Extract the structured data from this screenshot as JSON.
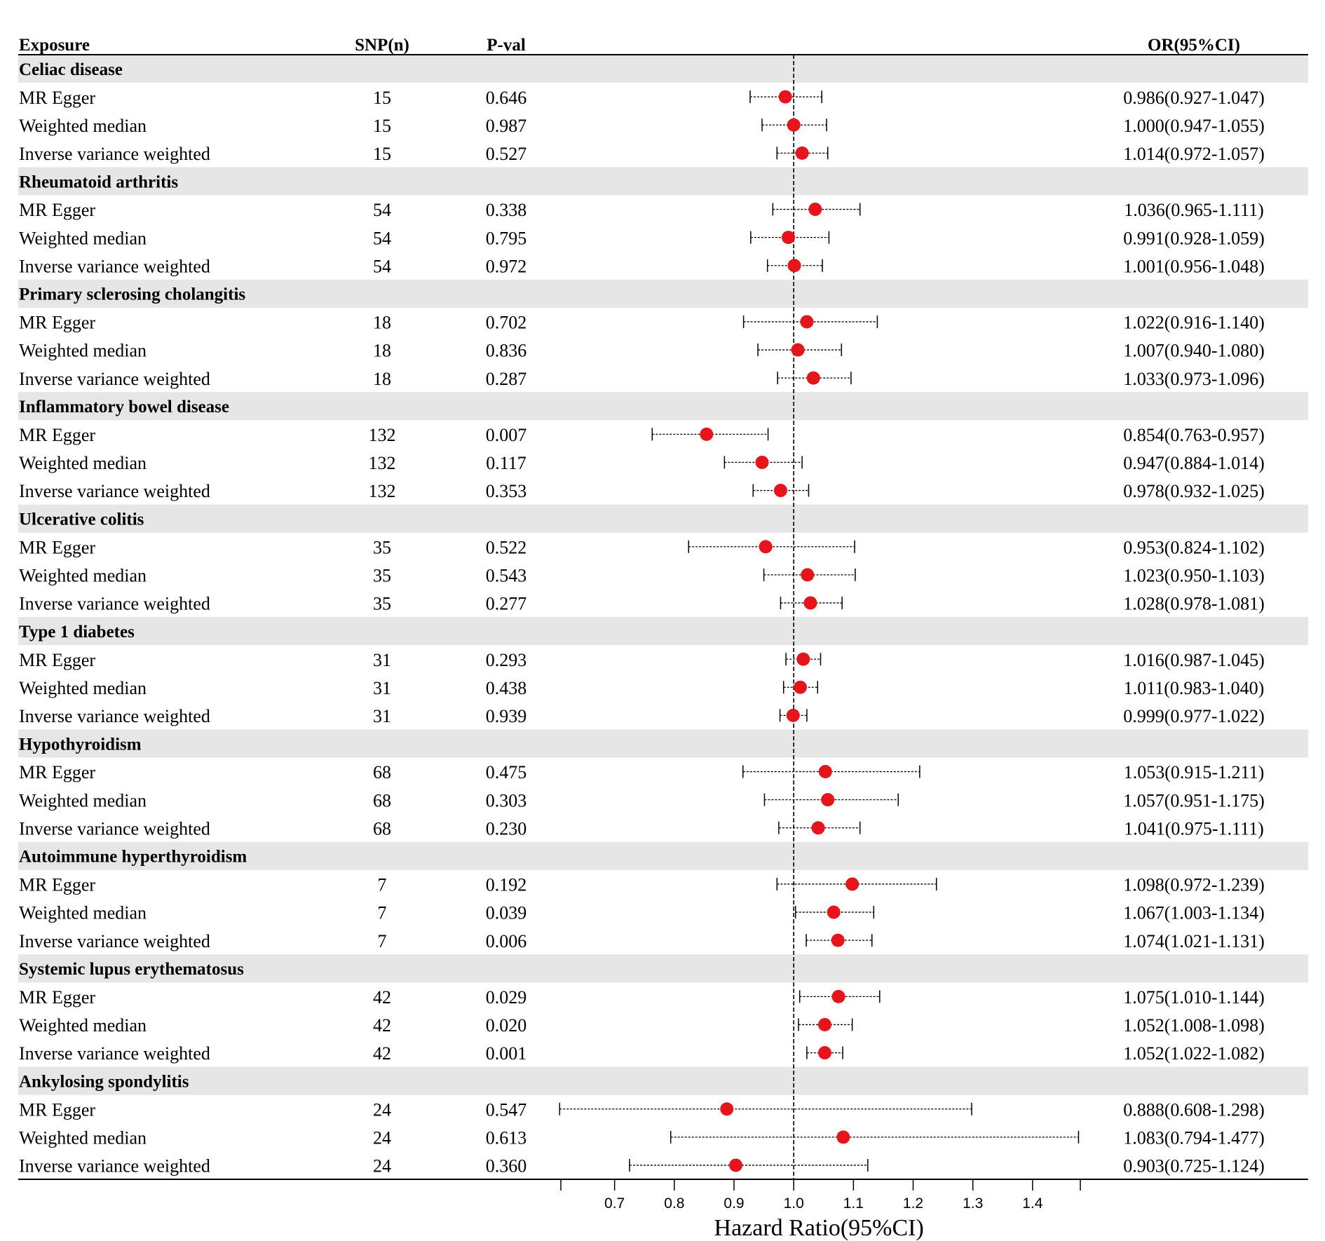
{
  "chart_data": {
    "type": "forest",
    "columns": {
      "exposure": "Exposure",
      "snp": "SNP(n)",
      "pval": "P-val",
      "or": "OR(95%CI)"
    },
    "xlabel": "Hazard Ratio(95%CI)",
    "xlim": [
      0.61,
      1.48
    ],
    "reference": 1.0,
    "xticks": [
      0.7,
      0.8,
      0.9,
      1.0,
      1.1,
      1.2,
      1.3,
      1.4
    ],
    "xtick_labels": [
      "0.7",
      "0.8",
      "0.9",
      "1.0",
      "1.1",
      "1.2",
      "1.3",
      "1.4"
    ],
    "point_color": "#e8141c",
    "band_color": "#e6e6e6",
    "groups": [
      {
        "name": "Celiac disease",
        "rows": [
          {
            "method": "MR Egger",
            "snp": "15",
            "pval": "0.646",
            "or": 0.986,
            "lo": 0.927,
            "hi": 1.047,
            "label": "0.986(0.927-1.047)"
          },
          {
            "method": "Weighted median",
            "snp": "15",
            "pval": "0.987",
            "or": 1.0,
            "lo": 0.947,
            "hi": 1.055,
            "label": "1.000(0.947-1.055)"
          },
          {
            "method": "Inverse variance weighted",
            "snp": "15",
            "pval": "0.527",
            "or": 1.014,
            "lo": 0.972,
            "hi": 1.057,
            "label": "1.014(0.972-1.057)"
          }
        ]
      },
      {
        "name": "Rheumatoid arthritis",
        "rows": [
          {
            "method": "MR Egger",
            "snp": "54",
            "pval": "0.338",
            "or": 1.036,
            "lo": 0.965,
            "hi": 1.111,
            "label": "1.036(0.965-1.111)"
          },
          {
            "method": "Weighted median",
            "snp": "54",
            "pval": "0.795",
            "or": 0.991,
            "lo": 0.928,
            "hi": 1.059,
            "label": "0.991(0.928-1.059)"
          },
          {
            "method": "Inverse variance weighted",
            "snp": "54",
            "pval": "0.972",
            "or": 1.001,
            "lo": 0.956,
            "hi": 1.048,
            "label": "1.001(0.956-1.048)"
          }
        ]
      },
      {
        "name": "Primary sclerosing cholangitis",
        "rows": [
          {
            "method": "MR Egger",
            "snp": "18",
            "pval": "0.702",
            "or": 1.022,
            "lo": 0.916,
            "hi": 1.14,
            "label": "1.022(0.916-1.140)"
          },
          {
            "method": "Weighted median",
            "snp": "18",
            "pval": "0.836",
            "or": 1.007,
            "lo": 0.94,
            "hi": 1.08,
            "label": "1.007(0.940-1.080)"
          },
          {
            "method": "Inverse variance weighted",
            "snp": "18",
            "pval": "0.287",
            "or": 1.033,
            "lo": 0.973,
            "hi": 1.096,
            "label": "1.033(0.973-1.096)"
          }
        ]
      },
      {
        "name": "Inflammatory bowel disease",
        "rows": [
          {
            "method": "MR Egger",
            "snp": "132",
            "pval": "0.007",
            "or": 0.854,
            "lo": 0.763,
            "hi": 0.957,
            "label": "0.854(0.763-0.957)"
          },
          {
            "method": "Weighted median",
            "snp": "132",
            "pval": "0.117",
            "or": 0.947,
            "lo": 0.884,
            "hi": 1.014,
            "label": "0.947(0.884-1.014)"
          },
          {
            "method": "Inverse variance weighted",
            "snp": "132",
            "pval": "0.353",
            "or": 0.978,
            "lo": 0.932,
            "hi": 1.025,
            "label": "0.978(0.932-1.025)"
          }
        ]
      },
      {
        "name": "Ulcerative colitis",
        "rows": [
          {
            "method": "MR Egger",
            "snp": "35",
            "pval": "0.522",
            "or": 0.953,
            "lo": 0.824,
            "hi": 1.102,
            "label": "0.953(0.824-1.102)"
          },
          {
            "method": "Weighted median",
            "snp": "35",
            "pval": "0.543",
            "or": 1.023,
            "lo": 0.95,
            "hi": 1.103,
            "label": "1.023(0.950-1.103)"
          },
          {
            "method": "Inverse variance weighted",
            "snp": "35",
            "pval": "0.277",
            "or": 1.028,
            "lo": 0.978,
            "hi": 1.081,
            "label": "1.028(0.978-1.081)"
          }
        ]
      },
      {
        "name": "Type 1 diabetes",
        "rows": [
          {
            "method": "MR Egger",
            "snp": "31",
            "pval": "0.293",
            "or": 1.016,
            "lo": 0.987,
            "hi": 1.045,
            "label": "1.016(0.987-1.045)"
          },
          {
            "method": "Weighted median",
            "snp": "31",
            "pval": "0.438",
            "or": 1.011,
            "lo": 0.983,
            "hi": 1.04,
            "label": "1.011(0.983-1.040)"
          },
          {
            "method": "Inverse variance weighted",
            "snp": "31",
            "pval": "0.939",
            "or": 0.999,
            "lo": 0.977,
            "hi": 1.022,
            "label": "0.999(0.977-1.022)"
          }
        ]
      },
      {
        "name": "Hypothyroidism",
        "rows": [
          {
            "method": "MR Egger",
            "snp": "68",
            "pval": "0.475",
            "or": 1.053,
            "lo": 0.915,
            "hi": 1.211,
            "label": "1.053(0.915-1.211)"
          },
          {
            "method": "Weighted median",
            "snp": "68",
            "pval": "0.303",
            "or": 1.057,
            "lo": 0.951,
            "hi": 1.175,
            "label": "1.057(0.951-1.175)"
          },
          {
            "method": "Inverse variance weighted",
            "snp": "68",
            "pval": "0.230",
            "or": 1.041,
            "lo": 0.975,
            "hi": 1.111,
            "label": "1.041(0.975-1.111)"
          }
        ]
      },
      {
        "name": "Autoimmune hyperthyroidism",
        "rows": [
          {
            "method": "MR Egger",
            "snp": "7",
            "pval": "0.192",
            "or": 1.098,
            "lo": 0.972,
            "hi": 1.239,
            "label": "1.098(0.972-1.239)"
          },
          {
            "method": "Weighted median",
            "snp": "7",
            "pval": "0.039",
            "or": 1.067,
            "lo": 1.003,
            "hi": 1.134,
            "label": "1.067(1.003-1.134)"
          },
          {
            "method": "Inverse variance weighted",
            "snp": "7",
            "pval": "0.006",
            "or": 1.074,
            "lo": 1.021,
            "hi": 1.131,
            "label": "1.074(1.021-1.131)"
          }
        ]
      },
      {
        "name": "Systemic lupus erythematosus",
        "rows": [
          {
            "method": "MR Egger",
            "snp": "42",
            "pval": "0.029",
            "or": 1.075,
            "lo": 1.01,
            "hi": 1.144,
            "label": "1.075(1.010-1.144)"
          },
          {
            "method": "Weighted median",
            "snp": "42",
            "pval": "0.020",
            "or": 1.052,
            "lo": 1.008,
            "hi": 1.098,
            "label": "1.052(1.008-1.098)"
          },
          {
            "method": "Inverse variance weighted",
            "snp": "42",
            "pval": "0.001",
            "or": 1.052,
            "lo": 1.022,
            "hi": 1.082,
            "label": "1.052(1.022-1.082)"
          }
        ]
      },
      {
        "name": "Ankylosing spondylitis",
        "rows": [
          {
            "method": "MR Egger",
            "snp": "24",
            "pval": "0.547",
            "or": 0.888,
            "lo": 0.608,
            "hi": 1.298,
            "label": "0.888(0.608-1.298)"
          },
          {
            "method": "Weighted median",
            "snp": "24",
            "pval": "0.613",
            "or": 1.083,
            "lo": 0.794,
            "hi": 1.477,
            "label": "1.083(0.794-1.477)"
          },
          {
            "method": "Inverse variance weighted",
            "snp": "24",
            "pval": "0.360",
            "or": 0.903,
            "lo": 0.725,
            "hi": 1.124,
            "label": "0.903(0.725-1.124)"
          }
        ]
      }
    ]
  }
}
